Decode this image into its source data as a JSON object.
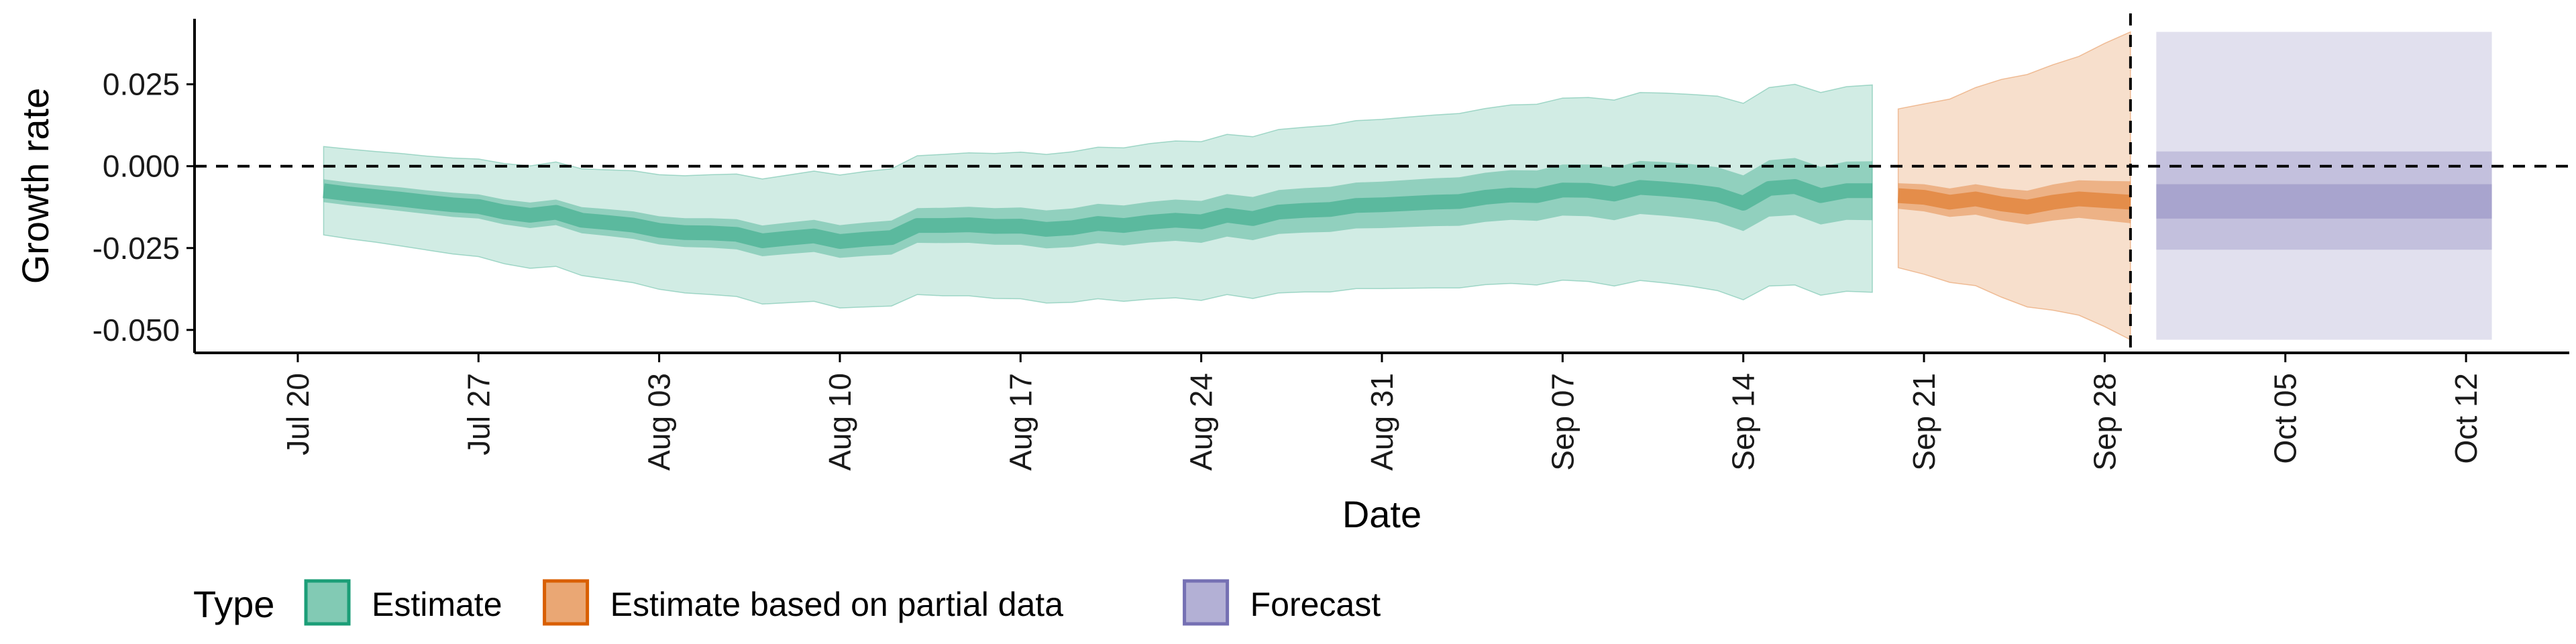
{
  "chart_data": {
    "type": "area",
    "xlabel": "Date",
    "ylabel": "Growth rate",
    "ylim": [
      -0.057,
      0.045
    ],
    "xlim": [
      "2020-07-16",
      "2020-10-16"
    ],
    "reference_line_y": 0,
    "vline_date": "2020-09-29",
    "grid": false,
    "x_ticks": [
      {
        "date": "2020-07-20",
        "label": "Jul 20"
      },
      {
        "date": "2020-07-27",
        "label": "Jul 27"
      },
      {
        "date": "2020-08-03",
        "label": "Aug 03"
      },
      {
        "date": "2020-08-10",
        "label": "Aug 10"
      },
      {
        "date": "2020-08-17",
        "label": "Aug 17"
      },
      {
        "date": "2020-08-24",
        "label": "Aug 24"
      },
      {
        "date": "2020-08-31",
        "label": "Aug 31"
      },
      {
        "date": "2020-09-07",
        "label": "Sep 07"
      },
      {
        "date": "2020-09-14",
        "label": "Sep 14"
      },
      {
        "date": "2020-09-21",
        "label": "Sep 21"
      },
      {
        "date": "2020-09-28",
        "label": "Sep 28"
      },
      {
        "date": "2020-10-05",
        "label": "Oct 05"
      },
      {
        "date": "2020-10-12",
        "label": "Oct 12"
      }
    ],
    "y_ticks": [
      {
        "value": 0.025,
        "label": "0.025"
      },
      {
        "value": 0,
        "label": "0.000"
      },
      {
        "value": -0.025,
        "label": "-0.025"
      },
      {
        "value": -0.05,
        "label": "-0.050"
      }
    ],
    "legend": {
      "title": "Type",
      "position": "bottom",
      "items": [
        {
          "label": "Estimate",
          "color": "#1b9e77"
        },
        {
          "label": "Estimate based on partial data",
          "color": "#d95f02"
        },
        {
          "label": "Forecast",
          "color": "#7570b3"
        }
      ]
    },
    "series": [
      {
        "name": "Estimate",
        "color": "#1b9e77",
        "step": false,
        "dates": [
          "2020-07-21",
          "2020-07-22",
          "2020-07-23",
          "2020-07-24",
          "2020-07-25",
          "2020-07-26",
          "2020-07-27",
          "2020-07-28",
          "2020-07-29",
          "2020-07-30",
          "2020-07-31",
          "2020-08-01",
          "2020-08-02",
          "2020-08-03",
          "2020-08-04",
          "2020-08-05",
          "2020-08-06",
          "2020-08-07",
          "2020-08-08",
          "2020-08-09",
          "2020-08-10",
          "2020-08-11",
          "2020-08-12",
          "2020-08-13",
          "2020-08-14",
          "2020-08-15",
          "2020-08-16",
          "2020-08-17",
          "2020-08-18",
          "2020-08-19",
          "2020-08-20",
          "2020-08-21",
          "2020-08-22",
          "2020-08-23",
          "2020-08-24",
          "2020-08-25",
          "2020-08-26",
          "2020-08-27",
          "2020-08-28",
          "2020-08-29",
          "2020-08-30",
          "2020-08-31",
          "2020-09-01",
          "2020-09-02",
          "2020-09-03",
          "2020-09-04",
          "2020-09-05",
          "2020-09-06",
          "2020-09-07",
          "2020-09-08",
          "2020-09-09",
          "2020-09-10",
          "2020-09-11",
          "2020-09-12",
          "2020-09-13",
          "2020-09-14",
          "2020-09-15",
          "2020-09-16",
          "2020-09-17",
          "2020-09-18",
          "2020-09-19"
        ],
        "median": [
          -0.0075,
          -0.0085,
          -0.0093,
          -0.0101,
          -0.011,
          -0.0118,
          -0.0123,
          -0.014,
          -0.015,
          -0.0141,
          -0.0165,
          -0.0172,
          -0.018,
          -0.0196,
          -0.0203,
          -0.0204,
          -0.0208,
          -0.0228,
          -0.022,
          -0.0213,
          -0.023,
          -0.0223,
          -0.0218,
          -0.0181,
          -0.0181,
          -0.0179,
          -0.0184,
          -0.0183,
          -0.0193,
          -0.0188,
          -0.0175,
          -0.0181,
          -0.0171,
          -0.0165,
          -0.017,
          -0.015,
          -0.016,
          -0.014,
          -0.0135,
          -0.0132,
          -0.012,
          -0.0118,
          -0.0114,
          -0.011,
          -0.0108,
          -0.0095,
          -0.0088,
          -0.009,
          -0.0073,
          -0.0074,
          -0.0085,
          -0.0065,
          -0.007,
          -0.0077,
          -0.0087,
          -0.0113,
          -0.0068,
          -0.0062,
          -0.009,
          -0.0075,
          -0.0075
        ],
        "lower_50": [
          -0.011,
          -0.012,
          -0.0128,
          -0.0137,
          -0.0146,
          -0.0155,
          -0.016,
          -0.0178,
          -0.0189,
          -0.018,
          -0.0205,
          -0.0213,
          -0.0222,
          -0.0239,
          -0.0247,
          -0.0249,
          -0.0254,
          -0.0275,
          -0.0268,
          -0.0262,
          -0.028,
          -0.0274,
          -0.027,
          -0.0234,
          -0.0235,
          -0.0234,
          -0.024,
          -0.024,
          -0.0251,
          -0.0247,
          -0.0235,
          -0.0242,
          -0.0233,
          -0.0228,
          -0.0234,
          -0.0215,
          -0.0226,
          -0.0207,
          -0.0203,
          -0.0201,
          -0.019,
          -0.0189,
          -0.0186,
          -0.0183,
          -0.0182,
          -0.017,
          -0.0164,
          -0.0167,
          -0.0151,
          -0.0153,
          -0.0165,
          -0.0146,
          -0.0152,
          -0.016,
          -0.0171,
          -0.0198,
          -0.0154,
          -0.0149,
          -0.0178,
          -0.0164,
          -0.0165
        ],
        "upper_50": [
          -0.004,
          -0.005,
          -0.0058,
          -0.0065,
          -0.0074,
          -0.0081,
          -0.0086,
          -0.0102,
          -0.0111,
          -0.0102,
          -0.0125,
          -0.0131,
          -0.0138,
          -0.0153,
          -0.0159,
          -0.0159,
          -0.0162,
          -0.0181,
          -0.0172,
          -0.0164,
          -0.018,
          -0.0172,
          -0.0166,
          -0.0128,
          -0.0127,
          -0.0124,
          -0.0128,
          -0.0126,
          -0.0135,
          -0.0129,
          -0.0115,
          -0.012,
          -0.0109,
          -0.0102,
          -0.0106,
          -0.0085,
          -0.0094,
          -0.0073,
          -0.0067,
          -0.0063,
          -0.005,
          -0.0047,
          -0.0042,
          -0.0037,
          -0.0034,
          -0.002,
          -0.0012,
          -0.0013,
          0.0005,
          0.0005,
          -0.0005,
          0.0016,
          0.0012,
          0.0006,
          -0.0003,
          -0.0028,
          0.0018,
          0.0025,
          -0.0002,
          0.0014,
          0.0015
        ],
        "lower_90": [
          -0.021,
          -0.0222,
          -0.0232,
          -0.0244,
          -0.0256,
          -0.0268,
          -0.0276,
          -0.0298,
          -0.0312,
          -0.0306,
          -0.0334,
          -0.0345,
          -0.0356,
          -0.0376,
          -0.0387,
          -0.0392,
          -0.0398,
          -0.0421,
          -0.0417,
          -0.0413,
          -0.0433,
          -0.043,
          -0.0427,
          -0.0392,
          -0.0396,
          -0.0396,
          -0.0404,
          -0.0405,
          -0.0418,
          -0.0416,
          -0.0405,
          -0.0413,
          -0.0406,
          -0.0402,
          -0.041,
          -0.0392,
          -0.0404,
          -0.0387,
          -0.0384,
          -0.0384,
          -0.0374,
          -0.0374,
          -0.0373,
          -0.0372,
          -0.0372,
          -0.0362,
          -0.0358,
          -0.0363,
          -0.0348,
          -0.0352,
          -0.0366,
          -0.0349,
          -0.0357,
          -0.0367,
          -0.038,
          -0.0408,
          -0.0366,
          -0.0363,
          -0.0394,
          -0.0382,
          -0.0385
        ],
        "upper_90": [
          0.006,
          0.0052,
          0.0045,
          0.0039,
          0.0031,
          0.0025,
          0.0022,
          0.0008,
          0.0001,
          0.0013,
          -0.0008,
          -0.0011,
          -0.0014,
          -0.0026,
          -0.0029,
          -0.0026,
          -0.0024,
          -0.0039,
          -0.0027,
          -0.0015,
          -0.0027,
          -0.0016,
          -0.0008,
          0.0032,
          0.0036,
          0.0041,
          0.0039,
          0.0043,
          0.0036,
          0.0044,
          0.0058,
          0.0056,
          0.0069,
          0.0077,
          0.0075,
          0.0097,
          0.009,
          0.0112,
          0.0119,
          0.0125,
          0.0139,
          0.0143,
          0.015,
          0.0156,
          0.0161,
          0.0176,
          0.0187,
          0.0189,
          0.0208,
          0.021,
          0.0202,
          0.0225,
          0.0223,
          0.0219,
          0.0214,
          0.0192,
          0.024,
          0.025,
          0.0225,
          0.0243,
          0.0248
        ]
      },
      {
        "name": "Estimate based on partial data",
        "color": "#d95f02",
        "step": false,
        "dates": [
          "2020-09-20",
          "2020-09-21",
          "2020-09-22",
          "2020-09-23",
          "2020-09-24",
          "2020-09-25",
          "2020-09-26",
          "2020-09-27",
          "2020-09-28",
          "2020-09-29"
        ],
        "median": [
          -0.009,
          -0.0095,
          -0.011,
          -0.01,
          -0.0115,
          -0.0125,
          -0.011,
          -0.01,
          -0.0105,
          -0.011
        ],
        "lower_50": [
          -0.013,
          -0.0138,
          -0.0155,
          -0.0148,
          -0.0166,
          -0.0178,
          -0.0166,
          -0.0158,
          -0.0166,
          -0.0174
        ],
        "upper_50": [
          -0.0052,
          -0.0055,
          -0.0068,
          -0.0055,
          -0.0068,
          -0.0075,
          -0.0056,
          -0.0043,
          -0.0045,
          -0.0046
        ],
        "lower_90": [
          -0.031,
          -0.033,
          -0.0355,
          -0.0365,
          -0.04,
          -0.043,
          -0.044,
          -0.0455,
          -0.049,
          -0.053
        ],
        "upper_90": [
          0.0175,
          0.019,
          0.0205,
          0.024,
          0.0265,
          0.028,
          0.031,
          0.0335,
          0.0375,
          0.041
        ]
      },
      {
        "name": "Forecast",
        "color": "#7570b3",
        "step": true,
        "dates": [
          "2020-09-30",
          "2020-10-13"
        ],
        "median": [
          -0.011,
          -0.011
        ],
        "lower_50": [
          -0.016,
          -0.016
        ],
        "upper_50": [
          -0.0055,
          -0.0055
        ],
        "lower_20": [
          -0.016,
          -0.016
        ],
        "upper_20": [
          -0.0055,
          -0.0055
        ],
        "lower_inner": [
          -0.0255,
          -0.0255
        ],
        "upper_inner": [
          0.0045,
          0.0045
        ],
        "lower_90": [
          -0.053,
          -0.053
        ],
        "upper_90": [
          0.041,
          0.041
        ]
      }
    ]
  }
}
